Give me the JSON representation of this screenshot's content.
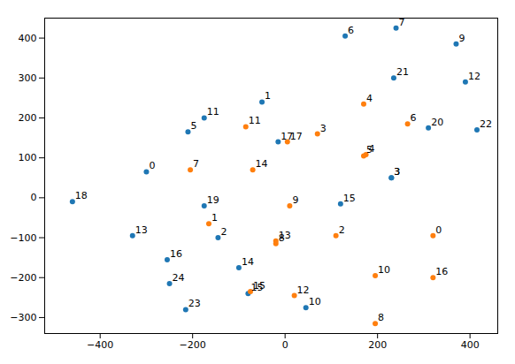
{
  "chart_data": {
    "type": "scatter",
    "xlim": [
      -520,
      460
    ],
    "ylim": [
      -340,
      450
    ],
    "xticks": [
      -400,
      -200,
      0,
      200,
      400
    ],
    "yticks": [
      -300,
      -200,
      -100,
      0,
      100,
      200,
      300,
      400
    ],
    "grid": false,
    "series": [
      {
        "color": "#1f77b4",
        "labels": [
          "18",
          "13",
          "2",
          "11",
          "0",
          "5",
          "19",
          "16",
          "24",
          "23",
          "14",
          "15",
          "17",
          "1",
          "10",
          "15",
          "3",
          "20",
          "21",
          "6",
          "7",
          "9",
          "12",
          "22",
          "3"
        ],
        "x": [
          -460,
          -330,
          -145,
          -175,
          -300,
          -210,
          -175,
          -255,
          -250,
          -215,
          -100,
          -80,
          -15,
          -50,
          45,
          120,
          230,
          310,
          235,
          130,
          240,
          370,
          390,
          415,
          230
        ],
        "values": [
          -10,
          -95,
          -100,
          200,
          65,
          165,
          -20,
          -155,
          -215,
          -280,
          -175,
          -240,
          140,
          240,
          -275,
          -15,
          50,
          175,
          300,
          405,
          425,
          385,
          290,
          170,
          50
        ]
      },
      {
        "color": "#ff7f0e",
        "labels": [
          "7",
          "11",
          "1",
          "14",
          "13",
          "8",
          "9",
          "17",
          "3",
          "4",
          "4",
          "5",
          "6",
          "2",
          "10",
          "12",
          "15",
          "16",
          "0",
          "8"
        ],
        "x": [
          -205,
          -85,
          -165,
          -70,
          -20,
          -20,
          10,
          5,
          70,
          170,
          175,
          170,
          265,
          110,
          195,
          20,
          -75,
          320,
          320,
          195
        ],
        "values": [
          70,
          178,
          -65,
          70,
          -108,
          -115,
          -20,
          140,
          160,
          235,
          108,
          105,
          185,
          -95,
          -195,
          -245,
          -235,
          -200,
          -95,
          -315
        ]
      }
    ]
  }
}
